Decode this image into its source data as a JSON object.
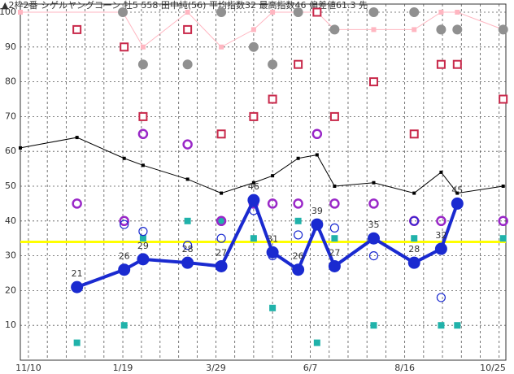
{
  "chart_data": {
    "type": "line",
    "title": "▲2枠2番 シゲルヤングコーン 牡5 558 田中純(56) 平均指数32 最高指数46 偏差値61.3 先",
    "xlim": [
      -6,
      354
    ],
    "ylim": [
      0,
      100
    ],
    "xticks": [
      {
        "value": 0,
        "label": "11/10"
      },
      {
        "value": 70,
        "label": "1/19"
      },
      {
        "value": 139,
        "label": "3/29"
      },
      {
        "value": 209,
        "label": "6/7"
      },
      {
        "value": 279,
        "label": "8/16"
      },
      {
        "value": 349,
        "label": "10/25"
      }
    ],
    "yticks": [
      10,
      20,
      30,
      40,
      50,
      60,
      70,
      80,
      90,
      100
    ],
    "grid": true,
    "hline": {
      "value": 34,
      "color": "#ffff00"
    },
    "series": [
      {
        "marker": "pink-square",
        "line": true,
        "color": "#ffb6c1",
        "x": [
          -6,
          70,
          85,
          118,
          143,
          167,
          181,
          200,
          214,
          227,
          256,
          286,
          306,
          318,
          352
        ],
        "values": [
          100,
          100,
          90,
          100,
          90,
          95,
          100,
          100,
          100,
          95,
          95,
          95,
          100,
          100,
          95
        ]
      },
      {
        "marker": "gray-circle",
        "line": false,
        "color": "#909090",
        "x": [
          70,
          85,
          118,
          143,
          167,
          181,
          200,
          227,
          256,
          286,
          306,
          318,
          352
        ],
        "values": [
          100,
          85,
          85,
          100,
          90,
          85,
          100,
          95,
          100,
          100,
          95,
          95,
          95
        ]
      },
      {
        "marker": "red-square",
        "line": false,
        "color": "#c8284a",
        "x": [
          36,
          71,
          85,
          118,
          143,
          167,
          181,
          200,
          214,
          227,
          256,
          286,
          306,
          318,
          352
        ],
        "values": [
          95,
          90,
          70,
          95,
          65,
          70,
          75,
          85,
          100,
          70,
          80,
          65,
          85,
          85,
          75
        ]
      },
      {
        "marker": "teal-square",
        "line": false,
        "color": "#20b2aa",
        "x": [
          36,
          71,
          85,
          118,
          143,
          167,
          181,
          200,
          214,
          227,
          256,
          286,
          306,
          318,
          352
        ],
        "values": [
          5,
          10,
          35,
          40,
          40,
          35,
          15,
          40,
          5,
          35,
          10,
          35,
          10,
          10,
          35
        ]
      },
      {
        "marker": "purple-circle",
        "line": false,
        "color": "#9a28c8",
        "x": [
          36,
          71,
          85,
          118,
          143,
          167,
          181,
          200,
          214,
          227,
          256,
          286,
          306,
          318,
          352
        ],
        "values": [
          45,
          40,
          65,
          62,
          40,
          45,
          45,
          45,
          65,
          45,
          45,
          40,
          40,
          45,
          40
        ]
      },
      {
        "marker": "dot",
        "line": true,
        "color": "#000000",
        "x": [
          -6,
          36,
          71,
          85,
          118,
          143,
          167,
          181,
          200,
          214,
          227,
          256,
          286,
          306,
          318,
          352
        ],
        "values": [
          61,
          64,
          58,
          56,
          52,
          48,
          51,
          53,
          58,
          59,
          50,
          51,
          48,
          54,
          48,
          50
        ]
      },
      {
        "marker": "blue-ring",
        "line": false,
        "color": "#1a2ad0",
        "x": [
          71,
          85,
          118,
          143,
          167,
          181,
          200,
          227,
          256,
          286,
          306
        ],
        "values": [
          39,
          37,
          33,
          35,
          43,
          30,
          36,
          38,
          30,
          40,
          18
        ]
      },
      {
        "marker": "blue-dot",
        "line": true,
        "labels": true,
        "color": "#1a2ad0",
        "x": [
          36,
          71,
          85,
          118,
          143,
          167,
          181,
          200,
          214,
          227,
          256,
          286,
          306,
          318
        ],
        "values": [
          21,
          26,
          29,
          28,
          27,
          46,
          31,
          26,
          39,
          27,
          35,
          28,
          32,
          45
        ]
      }
    ]
  }
}
